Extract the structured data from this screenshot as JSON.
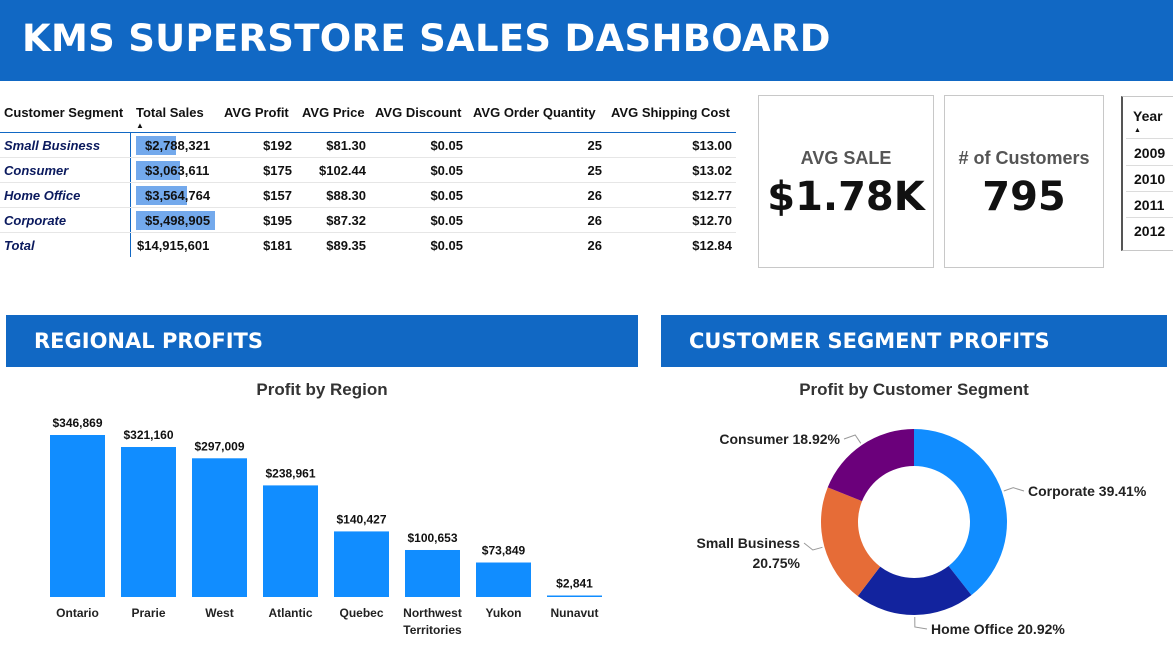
{
  "header": {
    "title": "KMS SUPERSTORE SALES DASHBOARD"
  },
  "table": {
    "columns": [
      "Customer Segment",
      "Total Sales",
      "AVG Profit",
      "AVG Price",
      "AVG Discount",
      "AVG Order Quantity",
      "AVG Shipping Cost"
    ],
    "rows": [
      {
        "segment": "Small Business",
        "total_sales": "$2,788,321",
        "sales_value": 2788321,
        "avg_profit": "$192",
        "avg_price": "$81.30",
        "avg_discount": "$0.05",
        "avg_order_qty": "25",
        "avg_shipping": "$13.00"
      },
      {
        "segment": "Consumer",
        "total_sales": "$3,063,611",
        "sales_value": 3063611,
        "avg_profit": "$175",
        "avg_price": "$102.44",
        "avg_discount": "$0.05",
        "avg_order_qty": "25",
        "avg_shipping": "$13.02"
      },
      {
        "segment": "Home Office",
        "total_sales": "$3,564,764",
        "sales_value": 3564764,
        "avg_profit": "$157",
        "avg_price": "$88.30",
        "avg_discount": "$0.05",
        "avg_order_qty": "26",
        "avg_shipping": "$12.77"
      },
      {
        "segment": "Corporate",
        "total_sales": "$5,498,905",
        "sales_value": 5498905,
        "avg_profit": "$195",
        "avg_price": "$87.32",
        "avg_discount": "$0.05",
        "avg_order_qty": "26",
        "avg_shipping": "$12.70"
      }
    ],
    "total": {
      "segment": "Total",
      "total_sales": "$14,915,601",
      "avg_profit": "$181",
      "avg_price": "$89.35",
      "avg_discount": "$0.05",
      "avg_order_qty": "26",
      "avg_shipping": "$12.84"
    },
    "databar_color": "#73a9ec"
  },
  "cards": {
    "avg_sale": {
      "label": "AVG SALE",
      "value": "$1.78K"
    },
    "customers": {
      "label": "# of Customers",
      "value": "795"
    }
  },
  "slicer": {
    "title": "Year",
    "options": [
      "2009",
      "2010",
      "2011",
      "2012"
    ]
  },
  "banners": {
    "regional": "REGIONAL PROFITS",
    "segment": "CUSTOMER SEGMENT PROFITS"
  },
  "colors": {
    "brand": "#1168c4",
    "bar": "#118dff",
    "corporate": "#118dff",
    "home_office": "#12239e",
    "small_business": "#e66c37",
    "consumer": "#6b007b"
  },
  "chart_data": [
    {
      "type": "bar",
      "title": "Profit by Region",
      "categories": [
        "Ontario",
        "Prarie",
        "West",
        "Atlantic",
        "Quebec",
        "Northwest Territories",
        "Yukon",
        "Nunavut"
      ],
      "values": [
        346869,
        321160,
        297009,
        238961,
        140427,
        100653,
        73849,
        2841
      ],
      "data_labels": [
        "$346,869",
        "$321,160",
        "$297,009",
        "$238,961",
        "$140,427",
        "$100,653",
        "$73,849",
        "$2,841"
      ],
      "xlabel": "",
      "ylabel": "",
      "grid": false
    },
    {
      "type": "pie",
      "title": "Profit by Customer Segment",
      "categories": [
        "Corporate",
        "Home Office",
        "Small Business",
        "Consumer"
      ],
      "values": [
        39.41,
        20.92,
        20.75,
        18.92
      ],
      "data_labels": [
        "Corporate 39.41%",
        "Home Office 20.92%",
        "Small Business 20.75%",
        "Consumer 18.92%"
      ],
      "donut": true
    }
  ]
}
